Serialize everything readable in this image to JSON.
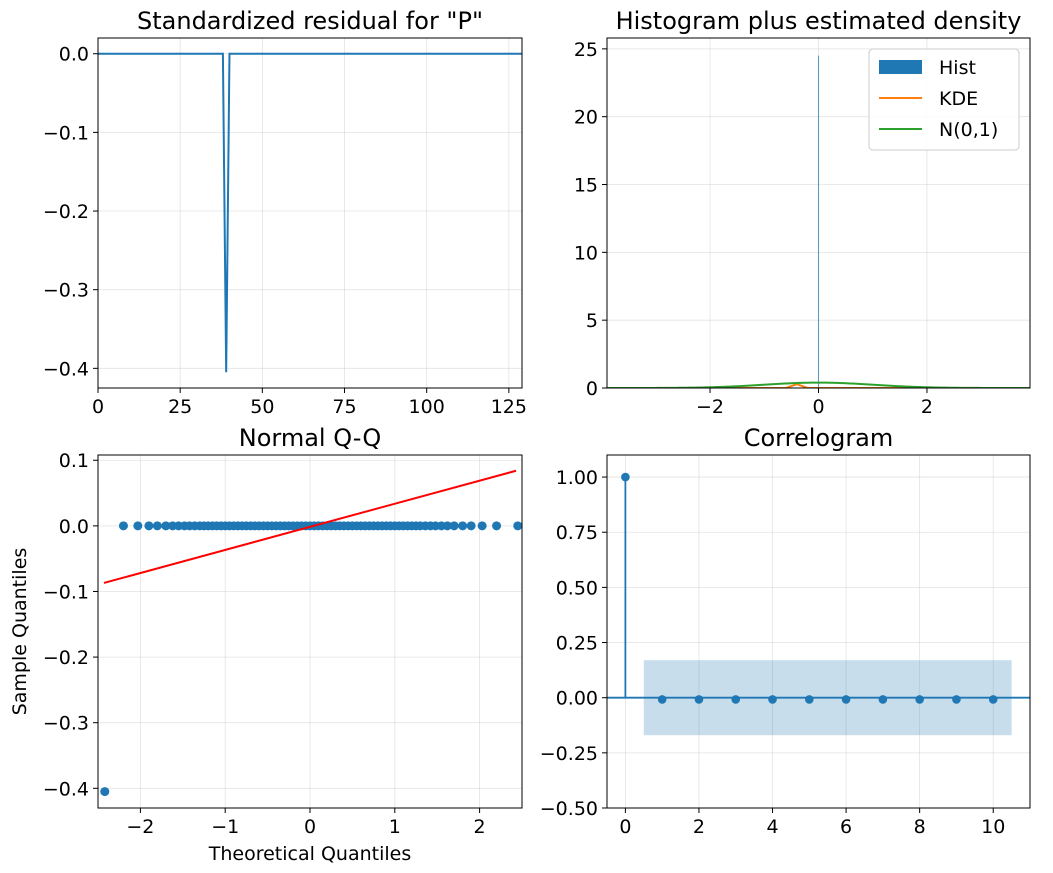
{
  "chart_data": [
    {
      "type": "line",
      "title": "Standardized residual for \"P\"",
      "xlabel": "",
      "ylabel": "",
      "xlim": [
        0,
        129
      ],
      "ylim": [
        -0.425,
        0.02
      ],
      "xticks": [
        0,
        25,
        50,
        75,
        100,
        125
      ],
      "xtick_labels": [
        "0",
        "25",
        "50",
        "75",
        "100",
        "125"
      ],
      "yticks": [
        0.0,
        -0.1,
        -0.2,
        -0.3,
        -0.4
      ],
      "ytick_labels": [
        "0.0",
        "−0.1",
        "−0.2",
        "−0.3",
        "−0.4"
      ],
      "grid": true,
      "series": [
        {
          "color": "#1f77b4",
          "x": [
            0,
            38,
            39,
            40,
            129
          ],
          "y": [
            0,
            0,
            -0.405,
            0,
            0
          ]
        }
      ]
    },
    {
      "type": "bar",
      "title": "Histogram plus estimated density",
      "xlabel": "",
      "ylabel": "",
      "xlim": [
        -3.9,
        3.9
      ],
      "ylim": [
        0,
        25.8
      ],
      "xticks": [
        -2,
        0,
        2
      ],
      "xtick_labels": [
        "−2",
        "0",
        "2"
      ],
      "yticks": [
        0,
        5,
        10,
        15,
        20,
        25
      ],
      "ytick_labels": [
        "0",
        "5",
        "10",
        "15",
        "20",
        "25"
      ],
      "grid": true,
      "legend": {
        "placement": "top-right",
        "entries": [
          "Hist",
          "KDE",
          "N(0,1)"
        ]
      },
      "hist": {
        "color": "#1f77b4",
        "bins": [
          {
            "x0": -0.01,
            "x1": 0.01,
            "height": 24.5
          }
        ]
      },
      "series": [
        {
          "name": "KDE",
          "color": "#ff7f0e",
          "x": [
            -3.9,
            -0.6,
            -0.4,
            -0.2,
            0,
            3.9
          ],
          "y": [
            0,
            0,
            0.28,
            0,
            0,
            0
          ]
        },
        {
          "name": "N(0,1)",
          "color": "#2ca02c",
          "type": "normal_pdf"
        }
      ]
    },
    {
      "type": "scatter",
      "title": "Normal Q-Q",
      "xlabel": "Theoretical Quantiles",
      "ylabel": "Sample Quantiles",
      "xlim": [
        -2.5,
        2.5
      ],
      "ylim": [
        -0.43,
        0.108
      ],
      "xticks": [
        -2,
        -1,
        0,
        1,
        2
      ],
      "xtick_labels": [
        "−2",
        "−1",
        "0",
        "1",
        "2"
      ],
      "yticks": [
        0.1,
        0.0,
        -0.1,
        -0.2,
        -0.3,
        -0.4
      ],
      "ytick_labels": [
        "0.1",
        "0.0",
        "−0.1",
        "−0.2",
        "−0.3",
        "−0.4"
      ],
      "grid": true,
      "points_color": "#1f77b4",
      "outlier": {
        "x": -2.42,
        "y": -0.405
      },
      "zero_points_x": [
        -2.2,
        -2.03,
        -1.9,
        -1.8,
        -1.7,
        -1.62,
        -1.55,
        -1.48,
        -1.42,
        -1.36,
        -1.3,
        -1.25,
        -1.2,
        -1.15,
        -1.1,
        -1.05,
        -1.0,
        -0.95,
        -0.9,
        -0.85,
        -0.8,
        -0.75,
        -0.7,
        -0.65,
        -0.6,
        -0.55,
        -0.5,
        -0.45,
        -0.4,
        -0.35,
        -0.3,
        -0.25,
        -0.2,
        -0.15,
        -0.1,
        -0.05,
        0.0,
        0.05,
        0.1,
        0.15,
        0.2,
        0.25,
        0.3,
        0.35,
        0.4,
        0.45,
        0.5,
        0.55,
        0.6,
        0.65,
        0.7,
        0.75,
        0.8,
        0.85,
        0.9,
        0.95,
        1.0,
        1.05,
        1.1,
        1.15,
        1.2,
        1.25,
        1.3,
        1.36,
        1.42,
        1.48,
        1.55,
        1.62,
        1.7,
        1.8,
        1.9,
        2.03,
        2.2,
        2.45
      ],
      "reference_line": {
        "color": "#ff0000",
        "x": [
          -2.43,
          2.43
        ],
        "y": [
          -0.087,
          0.084
        ]
      }
    },
    {
      "type": "bar",
      "title": "Correlogram",
      "xlabel": "",
      "ylabel": "",
      "xlim": [
        -0.5,
        11
      ],
      "ylim": [
        -0.5,
        1.1
      ],
      "xticks": [
        0,
        2,
        4,
        6,
        8,
        10
      ],
      "xtick_labels": [
        "0",
        "2",
        "4",
        "6",
        "8",
        "10"
      ],
      "yticks": [
        1.0,
        0.75,
        0.5,
        0.25,
        0.0,
        -0.25,
        -0.5
      ],
      "ytick_labels": [
        "1.00",
        "0.75",
        "0.50",
        "0.25",
        "0.00",
        "−0.25",
        "−0.50"
      ],
      "grid": true,
      "color": "#1f77b4",
      "lags": [
        0,
        1,
        2,
        3,
        4,
        5,
        6,
        7,
        8,
        9,
        10
      ],
      "acf": [
        1.0,
        -0.008,
        -0.008,
        -0.008,
        -0.008,
        -0.008,
        -0.008,
        -0.008,
        -0.008,
        -0.008,
        -0.008
      ],
      "confidence_band": {
        "x0": 0.5,
        "x1": 10.5,
        "lower": -0.17,
        "upper": 0.17,
        "color": "#1f77b4",
        "opacity": 0.25
      }
    }
  ]
}
